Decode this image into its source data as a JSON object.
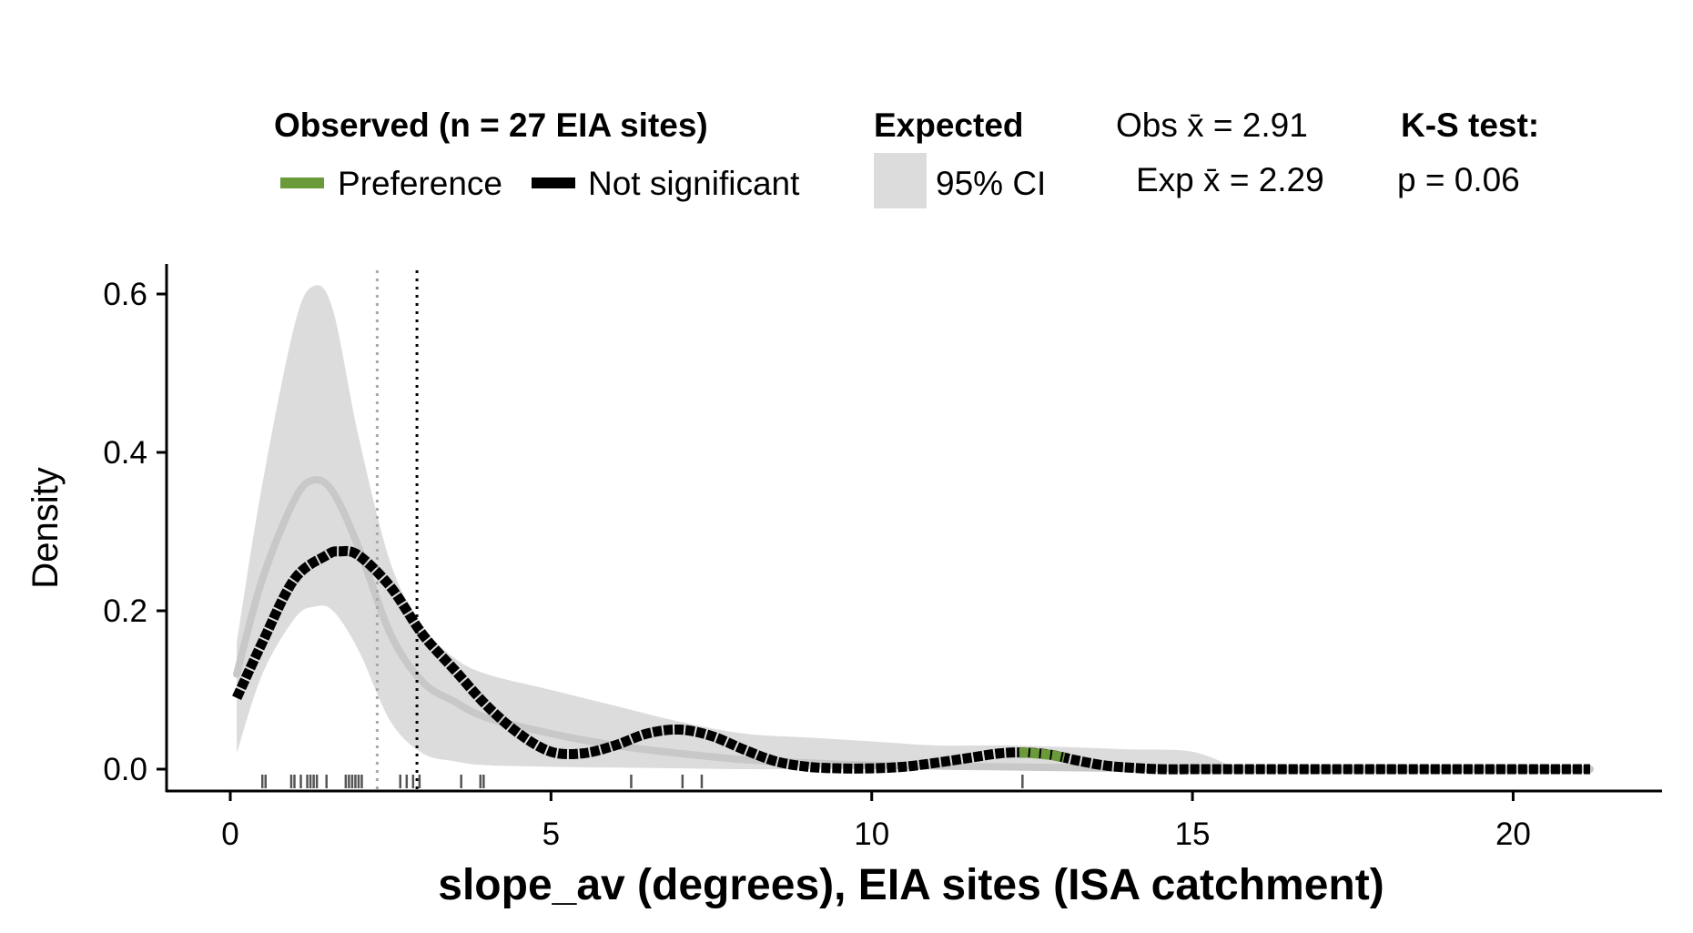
{
  "chart_data": {
    "type": "line",
    "xlabel": "slope_av (degrees), EIA sites (ISA catchment)",
    "ylabel": "Density",
    "xlim": [
      0,
      21.2
    ],
    "ylim": [
      0,
      0.6
    ],
    "x_ticks": [
      "0",
      "5",
      "10",
      "15",
      "20"
    ],
    "y_ticks": [
      "0.0",
      "0.2",
      "0.4",
      "0.6"
    ],
    "grid": false,
    "legend_placement": "top",
    "legend": {
      "observed_title": "Observed (n = 27 EIA sites)",
      "observed_items": [
        {
          "label": "Preference",
          "color": "#6a9a3a"
        },
        {
          "label": "Not significant",
          "color": "#000000"
        }
      ],
      "expected_title": "Expected",
      "expected_item": {
        "label": "95% CI",
        "color": "#dcdcdc"
      },
      "obs_mean_label": "Obs x̄ = 2.91",
      "exp_mean_label": "Exp x̄ = 2.29",
      "test_title": "K-S test:",
      "test_p_label": "p = 0.06"
    },
    "colors": {
      "observed": "#000000",
      "preference": "#6a9a3a",
      "ci_band": "#dcdcdc",
      "expected_mean": "#c8c8c8",
      "obs_mean_line": "#000000",
      "exp_mean_line": "#a8a8a8"
    },
    "obs_mean": 2.91,
    "exp_mean": 2.29,
    "observed_density": {
      "x": [
        0.1,
        0.5,
        1.0,
        1.5,
        1.7,
        2.0,
        2.5,
        3.0,
        3.5,
        4.0,
        4.5,
        5.0,
        5.5,
        6.0,
        6.5,
        7.0,
        7.5,
        8.0,
        8.5,
        9.0,
        9.5,
        10.0,
        10.5,
        11.0,
        11.5,
        12.0,
        12.4,
        12.8,
        13.2,
        13.6,
        14.0,
        14.5,
        15.0,
        16.0,
        18.0,
        21.2
      ],
      "y": [
        0.09,
        0.16,
        0.24,
        0.27,
        0.275,
        0.27,
        0.23,
        0.17,
        0.125,
        0.08,
        0.045,
        0.022,
        0.02,
        0.03,
        0.045,
        0.05,
        0.042,
        0.025,
        0.01,
        0.003,
        0.001,
        0.001,
        0.003,
        0.008,
        0.014,
        0.02,
        0.021,
        0.018,
        0.011,
        0.005,
        0.002,
        0.0,
        0.0,
        0.0,
        0.0,
        0.0
      ],
      "preference_range": [
        12.3,
        13.0
      ]
    },
    "expected_mean_curve": {
      "x": [
        0.1,
        0.5,
        1.0,
        1.3,
        1.6,
        2.0,
        2.5,
        3.0,
        3.5,
        4.0,
        5.0,
        6.0,
        7.0,
        8.0,
        9.0,
        10.0,
        12.0,
        14.0,
        16.0,
        18.0,
        21.2
      ],
      "y": [
        0.12,
        0.24,
        0.34,
        0.365,
        0.35,
        0.28,
        0.17,
        0.11,
        0.085,
        0.065,
        0.045,
        0.03,
        0.02,
        0.012,
        0.008,
        0.005,
        0.003,
        0.001,
        0.0,
        0.0,
        0.0
      ]
    },
    "ci_band": {
      "x": [
        0.1,
        0.5,
        1.0,
        1.3,
        1.6,
        2.0,
        2.5,
        3.0,
        3.5,
        4.0,
        5.0,
        6.0,
        7.0,
        8.0,
        9.0,
        10.0,
        11.0,
        12.0,
        13.0,
        14.0,
        15.0,
        15.7
      ],
      "upper": [
        0.16,
        0.36,
        0.56,
        0.61,
        0.58,
        0.42,
        0.26,
        0.18,
        0.14,
        0.12,
        0.1,
        0.08,
        0.06,
        0.045,
        0.04,
        0.035,
        0.03,
        0.03,
        0.028,
        0.025,
        0.022,
        0.0
      ],
      "lower": [
        0.02,
        0.12,
        0.19,
        0.205,
        0.2,
        0.15,
        0.06,
        0.02,
        0.01,
        0.005,
        0.003,
        0.002,
        0.001,
        0.0,
        0.0,
        0.0,
        0.0,
        0.0,
        0.0,
        0.0,
        0.0,
        0.0
      ]
    },
    "rug": [
      0.5,
      0.55,
      0.95,
      1.0,
      1.1,
      1.2,
      1.25,
      1.3,
      1.35,
      1.5,
      1.8,
      1.85,
      1.9,
      1.95,
      2.0,
      2.05,
      2.65,
      2.75,
      2.85,
      2.95,
      3.6,
      3.9,
      3.95,
      6.25,
      7.05,
      7.35,
      12.35
    ]
  }
}
